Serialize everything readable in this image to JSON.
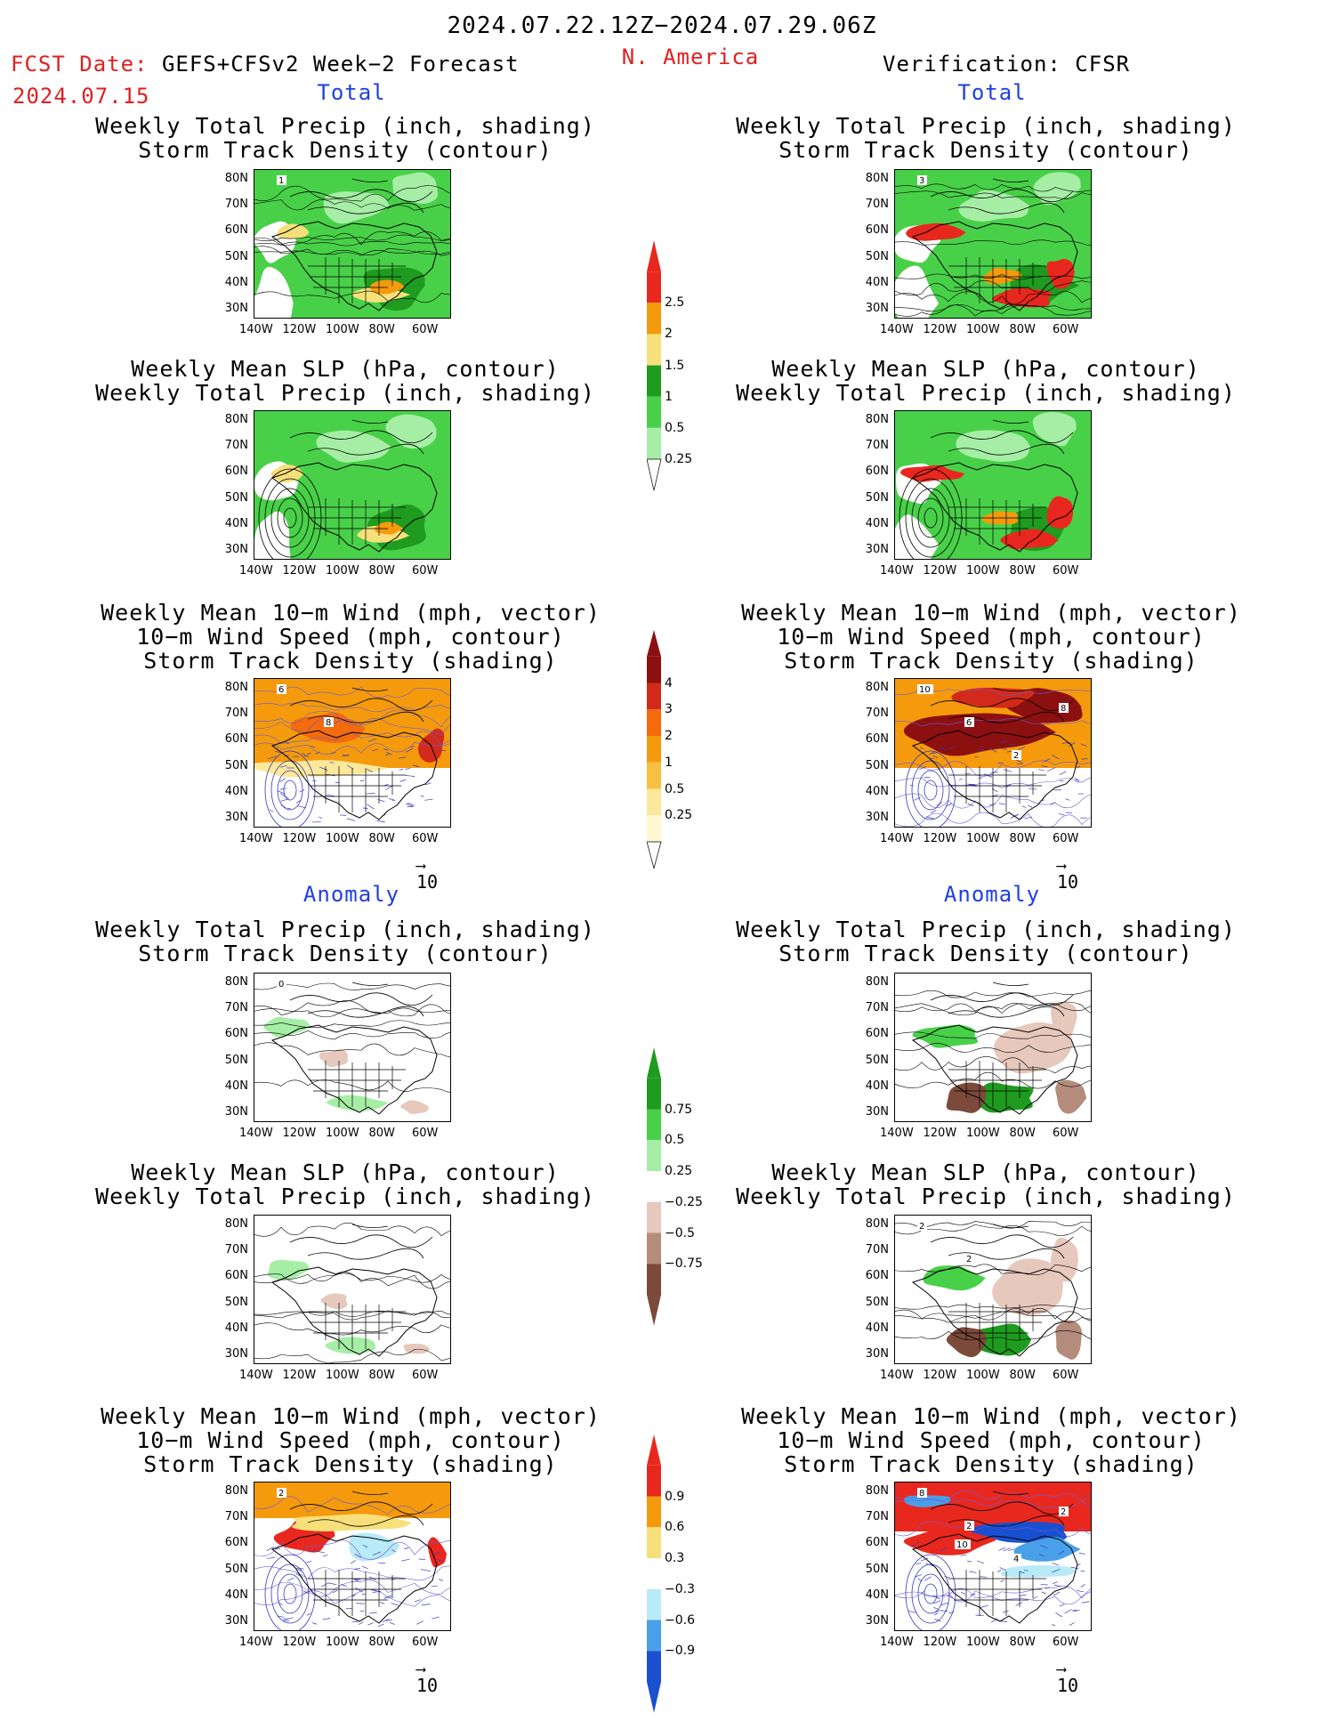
{
  "header": {
    "date_range": "2024.07.22.12Z−2024.07.29.06Z",
    "region": "N. America",
    "fcst_label": "FCST Date: ",
    "fcst_model": "GEFS+CFSv2 Week−2 Forecast",
    "fcst_date": "2024.07.15",
    "verification": "Verification: CFSR"
  },
  "sections": {
    "total": "Total",
    "anomaly": "Anomaly"
  },
  "titles": {
    "precip_track": [
      "Weekly Total Precip (inch, shading)",
      "Storm Track Density (contour)"
    ],
    "slp_precip": [
      "Weekly Mean SLP (hPa, contour)",
      "Weekly Total Precip (inch, shading)"
    ],
    "wind_track": [
      "Weekly Mean 10−m Wind (mph, vector)",
      "10−m Wind Speed (mph, contour)",
      "Storm Track Density (shading)"
    ]
  },
  "axes": {
    "lat_labels": [
      "80N",
      "70N",
      "60N",
      "50N",
      "40N",
      "30N"
    ],
    "lon_labels": [
      "140W",
      "120W",
      "100W",
      "80W",
      "60W"
    ]
  },
  "vector_ref": "10",
  "colorbars": {
    "precip_total": {
      "labels": [
        "2.5",
        "2",
        "1.5",
        "1",
        "0.5",
        "0.25"
      ],
      "colors": [
        "#e8281e",
        "#f59a0c",
        "#f7e07a",
        "#1f9b1f",
        "#49d049",
        "#a6eea6"
      ]
    },
    "track_total": {
      "labels": [
        "4",
        "3",
        "2",
        "1",
        "0.5",
        "0.25"
      ],
      "colors": [
        "#8c1010",
        "#d22a1a",
        "#f56a0c",
        "#f59a0c",
        "#f7c040",
        "#fbe89a",
        "#fdf8d0"
      ]
    },
    "precip_anom": {
      "labels": [
        "0.75",
        "0.5",
        "0.25",
        "−0.25",
        "−0.5",
        "−0.75"
      ],
      "colors": [
        "#1f9b1f",
        "#49d049",
        "#a6eea6",
        "#ffffff",
        "#e6c8bc",
        "#b48c7c",
        "#7c4a3a"
      ]
    },
    "track_anom": {
      "labels": [
        "0.9",
        "0.6",
        "0.3",
        "−0.3",
        "−0.6",
        "−0.9"
      ],
      "colors": [
        "#e8281e",
        "#f59a0c",
        "#f7e07a",
        "#ffffff",
        "#b8eaf7",
        "#4aa0e8",
        "#1a50d0"
      ]
    }
  },
  "contour_labels": {
    "fc_total_precip": "1",
    "obs_total_precip": "3",
    "fc_total_wind": [
      "6",
      "8"
    ],
    "obs_total_wind": [
      "10",
      "6",
      "2",
      "8"
    ],
    "fc_anom_precip": "0",
    "obs_anom_slp": [
      "2",
      "2"
    ],
    "fc_anom_wind": "2",
    "obs_anom_wind": [
      "8",
      "2",
      "4",
      "2",
      "10"
    ]
  }
}
